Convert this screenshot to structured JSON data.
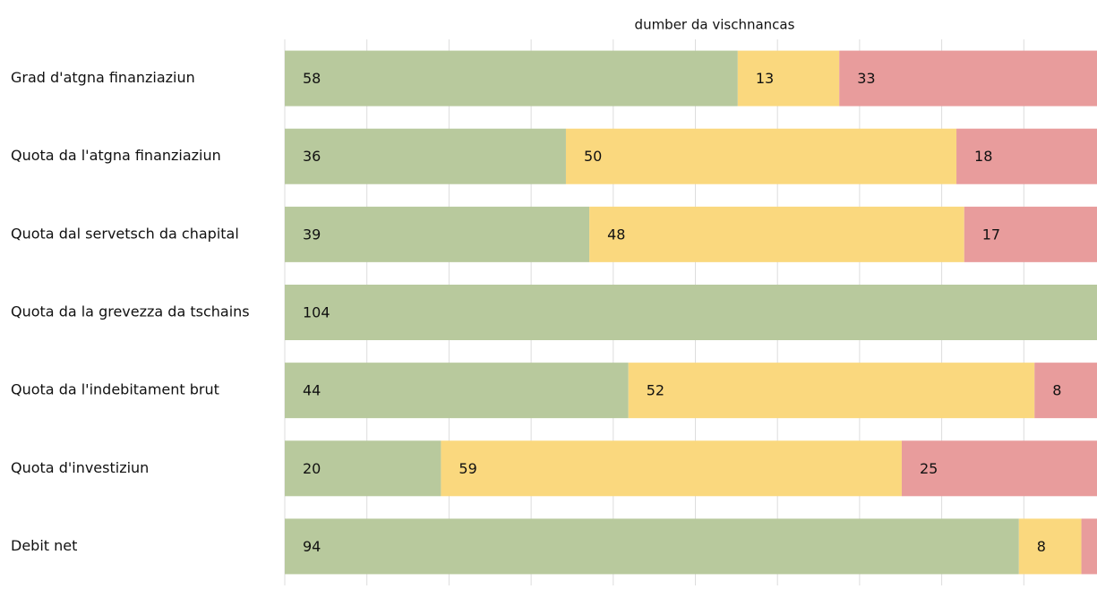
{
  "chart_data": {
    "type": "stacked-bar",
    "orientation": "horizontal",
    "title": "dumber da vischnancas",
    "categories": [
      "Grad d'atgna finanziaziun",
      "Quota da l'atgna finanziaziun",
      "Quota dal servetsch da chapital",
      "Quota da la grevezza da tschains",
      "Quota da l'indebitament brut",
      "Quota d'investiziun",
      "Debit net"
    ],
    "series": [
      {
        "color": "#b8c99d",
        "values": [
          58,
          36,
          39,
          104,
          44,
          20,
          94
        ]
      },
      {
        "color": "#fad87e",
        "values": [
          13,
          50,
          48,
          null,
          52,
          59,
          8
        ]
      },
      {
        "color": "#e89c9c",
        "values": [
          33,
          18,
          17,
          null,
          8,
          25,
          2
        ]
      }
    ],
    "xlim": [
      0,
      104
    ],
    "grid": true
  }
}
